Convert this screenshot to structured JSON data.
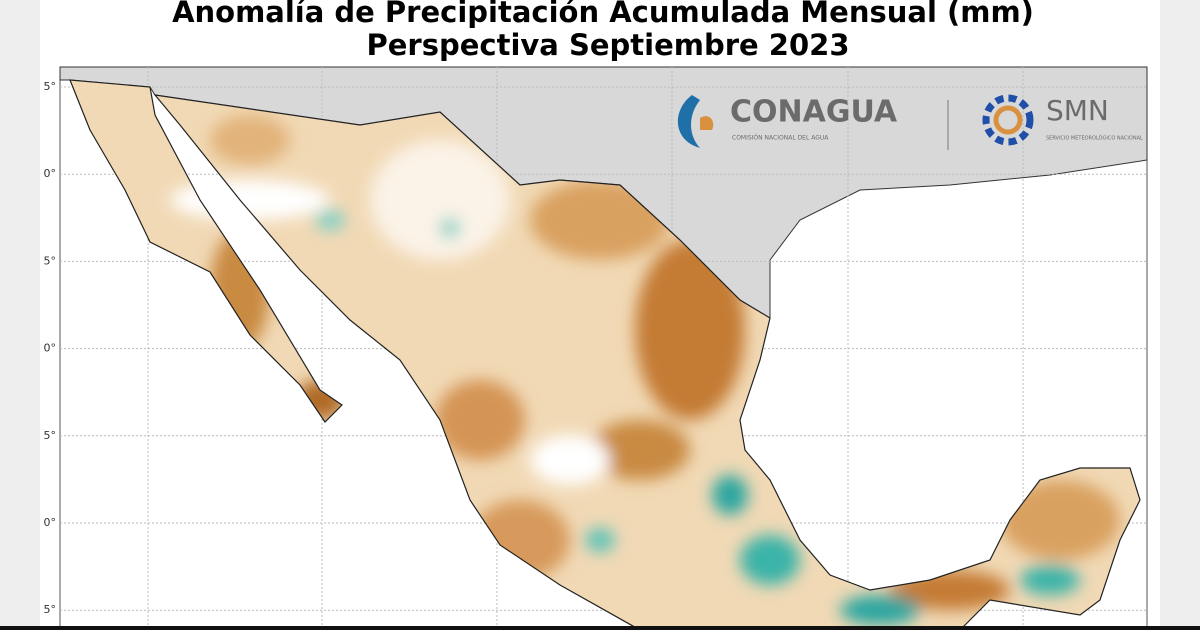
{
  "header": {
    "title_line1": "Anomalía de Precipitación Acumulada Mensual (mm)",
    "title_line2": "Perspectiva Septiembre 2023"
  },
  "map": {
    "lat_labels": [
      "5°",
      "0°",
      "5°",
      "0°",
      "5°",
      "0°",
      "5°"
    ]
  },
  "logos": {
    "conagua": "CONAGUA",
    "conagua_sub": "COMISIÓN NACIONAL DEL AGUA",
    "smn": "SMN",
    "smn_sub": "SERVICIO METEOROLÓGICO NACIONAL"
  }
}
